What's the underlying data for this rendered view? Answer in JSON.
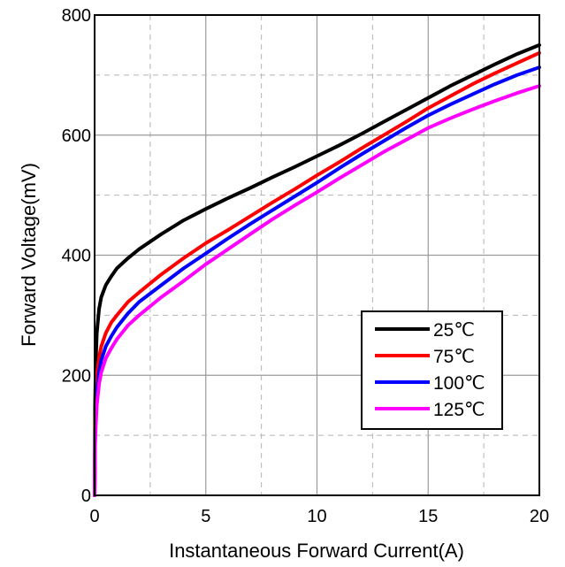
{
  "chart_data": {
    "type": "line",
    "title": "",
    "xlabel": "Instantaneous Forward Current(A)",
    "ylabel": "Forward Voltage(mV)",
    "xlim": [
      0,
      20
    ],
    "ylim": [
      0,
      800
    ],
    "x_ticks": [
      0,
      5,
      10,
      15,
      20
    ],
    "y_ticks": [
      0,
      200,
      400,
      600,
      800
    ],
    "grid": {
      "major": "solid",
      "minor": "dashed",
      "minor_x_step": 2.5,
      "minor_y_step": 100
    },
    "legend": {
      "position": "bottom-right"
    },
    "series": [
      {
        "name": "25℃",
        "color": "#000000",
        "points": [
          [
            0.02,
            150
          ],
          [
            0.05,
            220
          ],
          [
            0.1,
            270
          ],
          [
            0.2,
            310
          ],
          [
            0.3,
            330
          ],
          [
            0.5,
            350
          ],
          [
            0.75,
            365
          ],
          [
            1,
            378
          ],
          [
            1.5,
            395
          ],
          [
            2,
            410
          ],
          [
            3,
            435
          ],
          [
            4,
            458
          ],
          [
            5,
            477
          ],
          [
            6,
            495
          ],
          [
            7,
            512
          ],
          [
            8,
            530
          ],
          [
            9,
            547
          ],
          [
            10,
            565
          ],
          [
            11,
            583
          ],
          [
            12,
            602
          ],
          [
            13,
            622
          ],
          [
            14,
            642
          ],
          [
            15,
            662
          ],
          [
            16,
            682
          ],
          [
            17,
            700
          ],
          [
            18,
            718
          ],
          [
            19,
            735
          ],
          [
            20,
            750
          ]
        ]
      },
      {
        "name": "75℃",
        "color": "#ff0000",
        "points": [
          [
            0.02,
            110
          ],
          [
            0.05,
            160
          ],
          [
            0.1,
            200
          ],
          [
            0.2,
            230
          ],
          [
            0.3,
            248
          ],
          [
            0.5,
            270
          ],
          [
            0.75,
            288
          ],
          [
            1,
            300
          ],
          [
            1.5,
            322
          ],
          [
            2,
            338
          ],
          [
            3,
            368
          ],
          [
            4,
            395
          ],
          [
            5,
            420
          ],
          [
            6,
            442
          ],
          [
            7,
            465
          ],
          [
            8,
            488
          ],
          [
            9,
            510
          ],
          [
            10,
            533
          ],
          [
            11,
            555
          ],
          [
            12,
            578
          ],
          [
            13,
            600
          ],
          [
            14,
            622
          ],
          [
            15,
            645
          ],
          [
            16,
            665
          ],
          [
            17,
            685
          ],
          [
            18,
            703
          ],
          [
            19,
            720
          ],
          [
            20,
            737
          ]
        ]
      },
      {
        "name": "100℃",
        "color": "#0000ff",
        "points": [
          [
            0.02,
            90
          ],
          [
            0.05,
            135
          ],
          [
            0.1,
            170
          ],
          [
            0.2,
            205
          ],
          [
            0.3,
            225
          ],
          [
            0.5,
            248
          ],
          [
            0.75,
            265
          ],
          [
            1,
            280
          ],
          [
            1.5,
            303
          ],
          [
            2,
            322
          ],
          [
            3,
            350
          ],
          [
            4,
            378
          ],
          [
            5,
            403
          ],
          [
            6,
            428
          ],
          [
            7,
            452
          ],
          [
            8,
            475
          ],
          [
            9,
            498
          ],
          [
            10,
            521
          ],
          [
            11,
            545
          ],
          [
            12,
            568
          ],
          [
            13,
            590
          ],
          [
            14,
            612
          ],
          [
            15,
            633
          ],
          [
            16,
            651
          ],
          [
            17,
            668
          ],
          [
            18,
            685
          ],
          [
            19,
            700
          ],
          [
            20,
            713
          ]
        ]
      },
      {
        "name": "125℃",
        "color": "#ff00ff",
        "points": [
          [
            0.02,
            80
          ],
          [
            0.05,
            115
          ],
          [
            0.1,
            150
          ],
          [
            0.2,
            185
          ],
          [
            0.3,
            205
          ],
          [
            0.5,
            228
          ],
          [
            0.75,
            245
          ],
          [
            1,
            260
          ],
          [
            1.5,
            283
          ],
          [
            2,
            300
          ],
          [
            3,
            330
          ],
          [
            4,
            357
          ],
          [
            5,
            385
          ],
          [
            6,
            410
          ],
          [
            7,
            435
          ],
          [
            8,
            460
          ],
          [
            9,
            483
          ],
          [
            10,
            505
          ],
          [
            11,
            528
          ],
          [
            12,
            550
          ],
          [
            13,
            572
          ],
          [
            14,
            592
          ],
          [
            15,
            612
          ],
          [
            16,
            628
          ],
          [
            17,
            643
          ],
          [
            18,
            657
          ],
          [
            19,
            670
          ],
          [
            20,
            682
          ]
        ]
      }
    ]
  }
}
